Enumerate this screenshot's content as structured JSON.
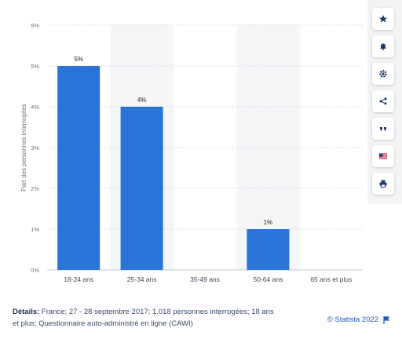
{
  "chart_data": {
    "type": "bar",
    "categories": [
      "18-24 ans",
      "25-34 ans",
      "35-49 ans",
      "50-64 ans",
      "65 ans et plus"
    ],
    "values": [
      5,
      4,
      0,
      1,
      0
    ],
    "data_labels": [
      "5%",
      "4%",
      "",
      "1%",
      ""
    ],
    "title": "",
    "xlabel": "",
    "ylabel": "Part des personnes interrogées",
    "ylim": [
      0,
      6
    ],
    "yticks": [
      "0%",
      "1%",
      "2%",
      "3%",
      "4%",
      "5%",
      "6%"
    ],
    "grid": true,
    "bar_color": "#2a74d8"
  },
  "toolbar": {
    "buttons": [
      {
        "icon": "star-icon"
      },
      {
        "icon": "bell-icon"
      },
      {
        "icon": "gear-icon"
      },
      {
        "icon": "share-icon"
      },
      {
        "icon": "quote-icon"
      },
      {
        "icon": "flag-icon"
      },
      {
        "icon": "print-icon"
      }
    ]
  },
  "footer": {
    "details_label": "Détails:",
    "details_text": "France; 27 - 28 septembre 2017; 1.018 personnes interrogées; 18 ans et plus; Questionnaire auto-administré en ligne (CAWI)",
    "credit": "© Statista 2022"
  },
  "colors": {
    "accent": "#2a74d8",
    "band": "#f5f6f8",
    "grid": "#d9dde3",
    "text_muted": "#6b7380"
  }
}
